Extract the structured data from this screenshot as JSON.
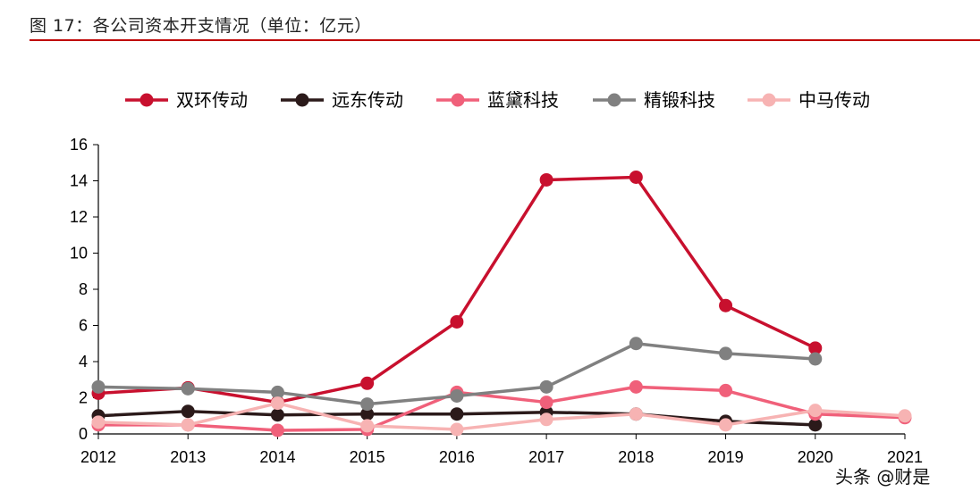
{
  "header": {
    "title": "图 17：各公司资本开支情况（单位：亿元）"
  },
  "watermark": "头条 @财是",
  "chart_data": {
    "type": "line",
    "title": "",
    "xlabel": "",
    "ylabel": "",
    "x": [
      "2012",
      "2013",
      "2014",
      "2015",
      "2016",
      "2017",
      "2018",
      "2019",
      "2020",
      "2021"
    ],
    "ylim": [
      0,
      16
    ],
    "yticks": [
      0,
      2,
      4,
      6,
      8,
      10,
      12,
      14,
      16
    ],
    "grid": false,
    "legend_position": "top",
    "series": [
      {
        "name": "双环传动",
        "color": "#c8102e",
        "values": [
          2.25,
          2.55,
          1.75,
          2.8,
          6.2,
          14.05,
          14.2,
          7.1,
          4.75,
          null
        ]
      },
      {
        "name": "远东传动",
        "color": "#2b1a1a",
        "values": [
          1.0,
          1.25,
          1.05,
          1.1,
          1.1,
          1.2,
          1.1,
          0.7,
          0.5,
          null
        ]
      },
      {
        "name": "蓝黛科技",
        "color": "#f0607a",
        "values": [
          0.5,
          0.5,
          0.2,
          0.25,
          2.3,
          1.75,
          2.6,
          2.4,
          1.1,
          0.9
        ]
      },
      {
        "name": "精锻科技",
        "color": "#808080",
        "values": [
          2.6,
          2.5,
          2.3,
          1.65,
          2.1,
          2.6,
          5.0,
          4.45,
          4.15,
          null
        ]
      },
      {
        "name": "中马传动",
        "color": "#f7b3b3",
        "values": [
          0.65,
          0.5,
          1.7,
          0.45,
          0.25,
          0.8,
          1.1,
          0.5,
          1.3,
          1.0
        ]
      }
    ]
  }
}
